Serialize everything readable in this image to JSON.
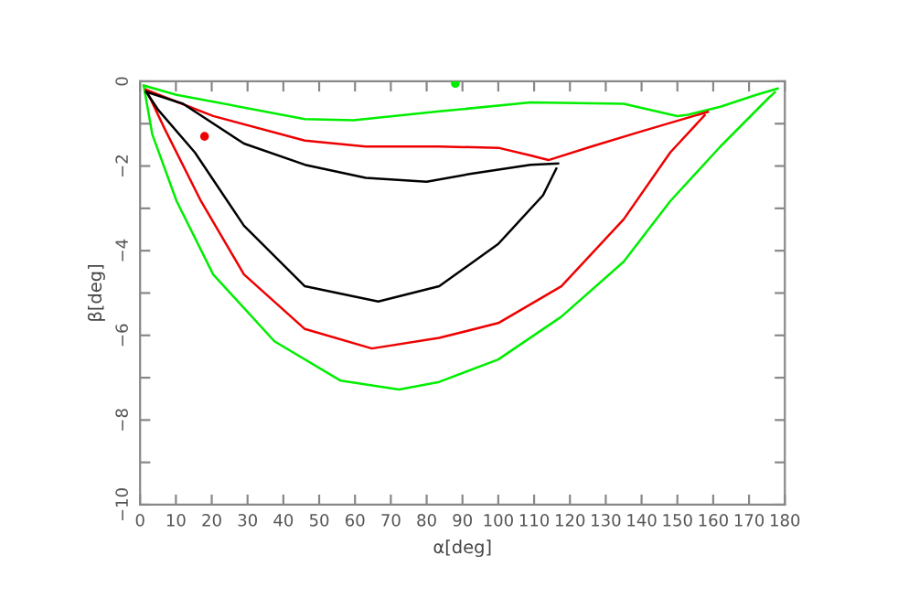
{
  "chart_data": {
    "type": "line",
    "xlabel": "α[deg]",
    "ylabel": "β[deg]",
    "xlim": [
      0,
      180
    ],
    "ylim": [
      -10,
      0
    ],
    "xticks": [
      0,
      10,
      20,
      30,
      40,
      50,
      60,
      70,
      80,
      90,
      100,
      110,
      120,
      130,
      140,
      150,
      160,
      170,
      180
    ],
    "yticks": [
      {
        "value": -10,
        "label": "−10"
      },
      {
        "value": -9,
        "label": null
      },
      {
        "value": -8,
        "label": "−8"
      },
      {
        "value": -7,
        "label": null
      },
      {
        "value": -6,
        "label": "−6"
      },
      {
        "value": -5,
        "label": null
      },
      {
        "value": -4,
        "label": "−4"
      },
      {
        "value": -3,
        "label": null
      },
      {
        "value": -2,
        "label": "−2"
      },
      {
        "value": -1,
        "label": null
      },
      0
    ],
    "grid": false,
    "legend": false,
    "marker": "none",
    "line_style": "solid",
    "series": [
      {
        "color": "#00ee00",
        "x": [
          1,
          10.2,
          46,
          59.6,
          83.5,
          109,
          135,
          150,
          153,
          162,
          172,
          178
        ],
        "values": [
          -0.1,
          -0.32,
          -0.89,
          -0.92,
          -0.71,
          -0.5,
          -0.53,
          -0.82,
          -0.79,
          -0.6,
          -0.32,
          -0.17
        ]
      },
      {
        "color": "#00ee00",
        "x": [
          1,
          3.4,
          10.2,
          20.4,
          37.5,
          56,
          72.3,
          83.5,
          100,
          117.6,
          135,
          148,
          162,
          175.5,
          177.2
        ],
        "values": [
          -0.1,
          -1.25,
          -2.83,
          -4.56,
          -6.14,
          -7.07,
          -7.28,
          -7.1,
          -6.57,
          -5.56,
          -4.26,
          -2.83,
          -1.54,
          -0.39,
          -0.26
        ]
      },
      {
        "color": "#ee0000",
        "x": [
          1.7,
          20.4,
          46,
          63,
          83.5,
          100,
          109,
          114,
          126,
          140,
          151.7,
          158.5
        ],
        "values": [
          -0.2,
          -0.82,
          -1.4,
          -1.54,
          -1.54,
          -1.57,
          -1.75,
          -1.86,
          -1.54,
          -1.18,
          -0.89,
          -0.72
        ]
      },
      {
        "color": "#ee0000",
        "x": [
          1.7,
          6.8,
          17,
          29,
          46,
          64.7,
          83.5,
          100,
          117.6,
          135,
          148,
          157.6
        ],
        "values": [
          -0.2,
          -1.11,
          -2.83,
          -4.56,
          -5.85,
          -6.31,
          -6.06,
          -5.71,
          -4.84,
          -3.26,
          -1.68,
          -0.8
        ]
      },
      {
        "color": "#000000",
        "x": [
          1.7,
          12,
          29,
          46,
          63,
          80,
          92,
          109,
          116.7
        ],
        "values": [
          -0.25,
          -0.53,
          -1.47,
          -1.97,
          -2.28,
          -2.37,
          -2.19,
          -1.97,
          -1.94
        ]
      },
      {
        "color": "#000000",
        "x": [
          1.7,
          5.1,
          15.3,
          29,
          46,
          66.5,
          83.5,
          100,
          112.5,
          116.2
        ],
        "values": [
          -0.25,
          -0.68,
          -1.68,
          -3.41,
          -4.84,
          -5.2,
          -4.84,
          -3.84,
          -2.69,
          -2.06
        ]
      },
      {
        "type": "scatter",
        "color": "#ee0000",
        "x": [
          18
        ],
        "values": [
          -1.3
        ]
      },
      {
        "type": "scatter",
        "color": "#00ee00",
        "x": [
          88
        ],
        "values": [
          -0.05
        ]
      }
    ]
  }
}
